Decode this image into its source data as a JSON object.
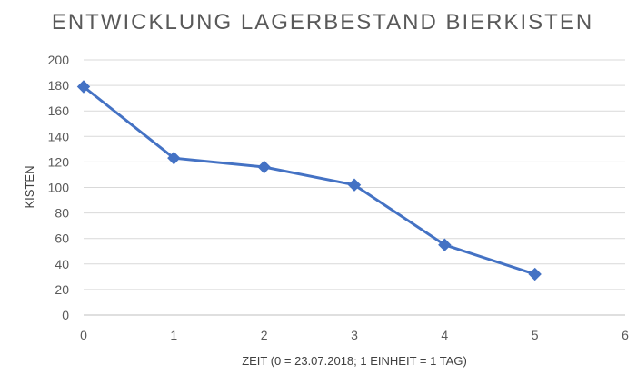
{
  "chart_data": {
    "type": "scatter",
    "title": "ENTWICKLUNG LAGERBESTAND BIERKISTEN",
    "xlabel": "ZEIT (0 = 23.07.2018; 1 EINHEIT = 1 TAG)",
    "ylabel": "KISTEN",
    "x": [
      0,
      1,
      2,
      3,
      4,
      5
    ],
    "series": [
      {
        "values": [
          179,
          123,
          116,
          102,
          55,
          32
        ],
        "color": "#4472c4",
        "marker": "diamond",
        "line": "straight"
      }
    ],
    "xlim": [
      0,
      6
    ],
    "ylim": [
      0,
      200
    ],
    "xticks": [
      0,
      1,
      2,
      3,
      4,
      5,
      6
    ],
    "yticks": [
      0,
      20,
      40,
      60,
      80,
      100,
      120,
      140,
      160,
      180,
      200
    ],
    "grid": "horizontal",
    "legend": "none"
  }
}
